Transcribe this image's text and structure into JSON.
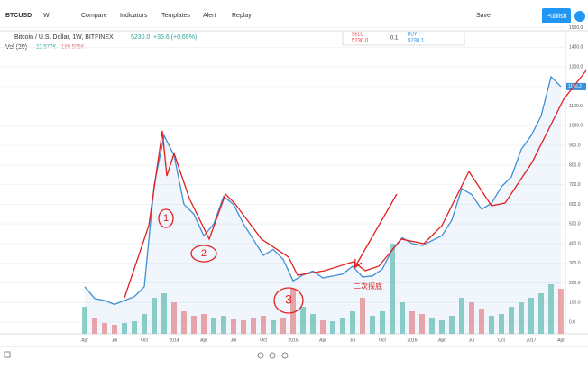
{
  "toolbar": {
    "symbol": "BTCUSD",
    "interval": "W",
    "compare": "Compare",
    "indicators": "Indicators",
    "templates": "Templates",
    "alert": "Alert",
    "replay": "Replay",
    "save": "Save",
    "publish": "Publish"
  },
  "legend": {
    "title": "Bitcoin / U.S. Dollar, 1W, BITFINEX",
    "price": "5230.0",
    "change": "+35.6 (+0.69%)",
    "volume_name": "Vol (20)",
    "volume_a": "22.577K",
    "volume_b": "189.506K"
  },
  "order_panel": {
    "sell": "SELL",
    "sell_price": "5230.0",
    "quantity": "0.1",
    "buy": "BUY",
    "buy_price": "5230.1"
  },
  "chart_data": {
    "type": "line",
    "last_price_label": "1195.2",
    "time_labels": [
      "Apr",
      "Jul",
      "Oct",
      "2014",
      "Apr",
      "Jul",
      "Oct",
      "2015",
      "Apr",
      "Jul",
      "Oct",
      "2016",
      "Apr",
      "Jul",
      "Oct",
      "2017",
      "Apr"
    ],
    "ylim": [
      -60,
      1480
    ],
    "yticks": [
      {
        "value": 0,
        "label": "0.0"
      },
      {
        "value": 100,
        "label": "100.0"
      },
      {
        "value": 200,
        "label": "200.0"
      },
      {
        "value": 300,
        "label": "300.0"
      },
      {
        "value": 400,
        "label": "400.0"
      },
      {
        "value": 500,
        "label": "500.0"
      },
      {
        "value": 600,
        "label": "600.0"
      },
      {
        "value": 700,
        "label": "700.0"
      },
      {
        "value": 800,
        "label": "800.0"
      },
      {
        "value": 900,
        "label": "900.0"
      },
      {
        "value": 1000,
        "label": "1000.0"
      },
      {
        "value": 1100,
        "label": "1100.0"
      },
      {
        "value": 1200,
        "label": "1200.0"
      },
      {
        "value": 1300,
        "label": "1300.0"
      },
      {
        "value": 1400,
        "label": "1400.0"
      },
      {
        "value": 1500,
        "label": "1500.0"
      }
    ],
    "series": [
      {
        "name": "Bitcoin / U.S. Dollar",
        "color": "#3d8fd6",
        "values": [
          180,
          120,
          110,
          90,
          110,
          130,
          180,
          700,
          950,
          850,
          600,
          550,
          440,
          500,
          640,
          600,
          500,
          420,
          340,
          370,
          320,
          210,
          240,
          260,
          225,
          235,
          245,
          285,
          230,
          235,
          270,
          370,
          430,
          400,
          390,
          415,
          440,
          520,
          680,
          650,
          575,
          605,
          690,
          740,
          880,
          950,
          1050,
          1250,
          1200
        ]
      }
    ],
    "volume": [
      30,
      18,
      12,
      10,
      12,
      14,
      22,
      40,
      45,
      35,
      25,
      20,
      22,
      18,
      20,
      16,
      15,
      18,
      20,
      15,
      18,
      50,
      30,
      22,
      15,
      14,
      18,
      25,
      40,
      20,
      25,
      100,
      35,
      25,
      22,
      18,
      15,
      20,
      40,
      35,
      28,
      20,
      22,
      30,
      35,
      40,
      45,
      55,
      50
    ],
    "annotations": {
      "circle_1": "1",
      "circle_2": "2",
      "circle_3": "3",
      "note": "二次探底"
    }
  }
}
